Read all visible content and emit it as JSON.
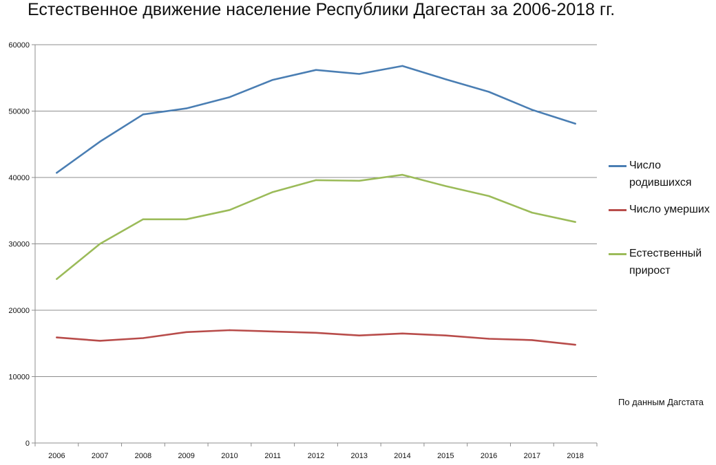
{
  "chart_data": {
    "type": "line",
    "title": "Естественное движение население Республики Дагестан за 2006-2018 гг.",
    "xlabel": "",
    "ylabel": "",
    "categories": [
      "2006",
      "2007",
      "2008",
      "2009",
      "2010",
      "2011",
      "2012",
      "2013",
      "2014",
      "2015",
      "2016",
      "2017",
      "2018"
    ],
    "y_ticks": [
      "0",
      "10000",
      "20000",
      "30000",
      "40000",
      "50000",
      "60000"
    ],
    "ylim": [
      0,
      60000
    ],
    "grid": true,
    "legend_position": "right",
    "series": [
      {
        "name": "Число родившихся",
        "color": "#4a7eb3",
        "values": [
          40700,
          45400,
          49500,
          50400,
          52100,
          54700,
          56200,
          55600,
          56800,
          54800,
          52900,
          50200,
          48100
        ]
      },
      {
        "name": "Число умерших",
        "color": "#b84c4a",
        "values": [
          15900,
          15400,
          15800,
          16700,
          17000,
          16800,
          16600,
          16200,
          16500,
          16200,
          15700,
          15500,
          14800
        ]
      },
      {
        "name": "Естественный прирост",
        "color": "#9bbb59",
        "values": [
          24700,
          30000,
          33700,
          33700,
          35100,
          37800,
          39600,
          39500,
          40400,
          38700,
          37200,
          34700,
          33300
        ]
      }
    ],
    "source_note": "По данным Дагстата"
  }
}
